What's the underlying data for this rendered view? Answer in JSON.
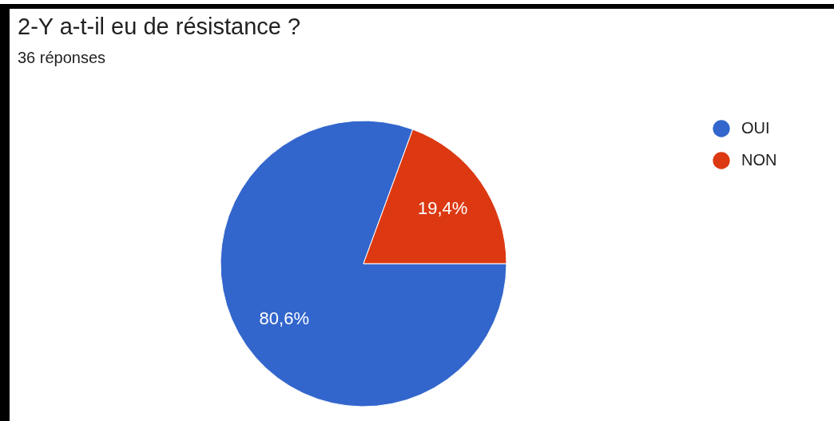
{
  "chart_data": {
    "type": "pie",
    "title": "2-Y a-t-il eu de résistance ?",
    "subtitle": "36 réponses",
    "categories": [
      "OUI",
      "NON"
    ],
    "values": [
      80.6,
      19.4
    ],
    "colors": [
      "#3366cc",
      "#dc3912"
    ],
    "value_labels": [
      "80,6%",
      "19,4%"
    ],
    "legend": "top right"
  }
}
